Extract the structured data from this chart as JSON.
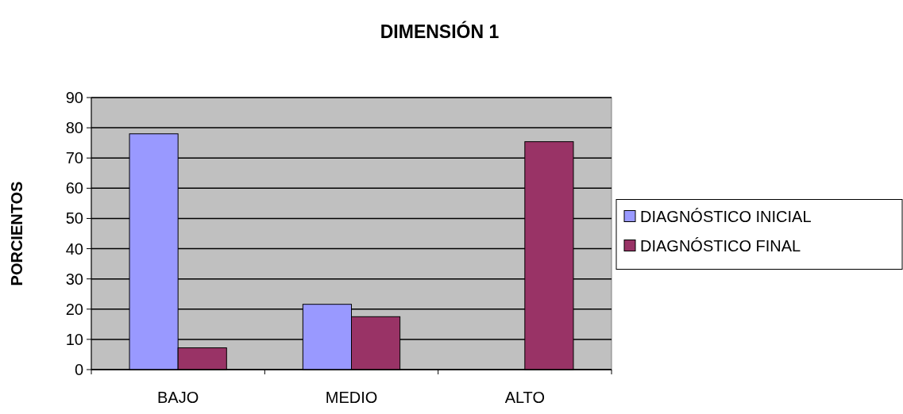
{
  "chart_data": {
    "type": "bar",
    "title": "DIMENSIÓN 1",
    "ylabel": "PORCIENTOS",
    "categories": [
      "BAJO",
      "MEDIO",
      "ALTO"
    ],
    "series": [
      {
        "name": "DIAGNÓSTICO INICIAL",
        "color": "#9999ff",
        "values": [
          78,
          21.6,
          0
        ]
      },
      {
        "name": "DIAGNÓSTICO FINAL",
        "color": "#993366",
        "values": [
          7.2,
          17.5,
          75.4
        ]
      }
    ],
    "ylim": [
      0,
      90
    ],
    "yticks": [
      0,
      10,
      20,
      30,
      40,
      50,
      60,
      70,
      80,
      90
    ],
    "grid": "y",
    "legend": "right"
  }
}
